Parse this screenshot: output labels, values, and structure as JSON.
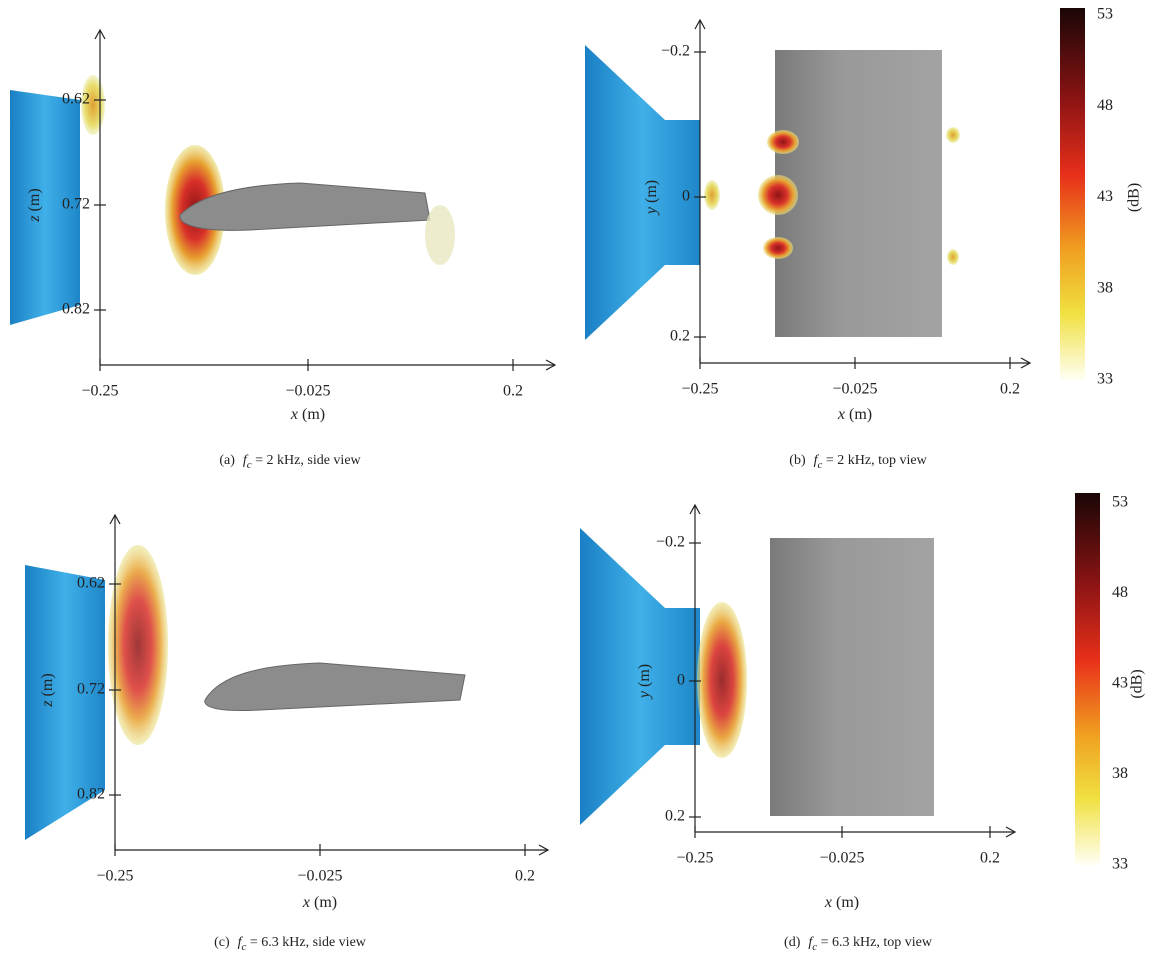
{
  "panels": [
    {
      "caption": {
        "label": "(a)",
        "symbol": "f",
        "subscript": "c",
        "text": " = 2 kHz, side view"
      },
      "xlabel": {
        "var": "x",
        "unit": " (m)"
      },
      "ylabel": {
        "var": "z",
        "unit": " (m)"
      },
      "xticks": [
        "−0.25",
        "−0.025",
        "0.2"
      ],
      "yticks": [
        "0.62",
        "0.72",
        "0.82"
      ]
    },
    {
      "caption": {
        "label": "(b)",
        "symbol": "f",
        "subscript": "c",
        "text": " = 2 kHz, top view"
      },
      "xlabel": {
        "var": "x",
        "unit": " (m)"
      },
      "ylabel": {
        "var": "y",
        "unit": " (m)"
      },
      "xticks": [
        "−0.25",
        "−0.025",
        "0.2"
      ],
      "yticks": [
        "−0.2",
        "0",
        "0.2"
      ]
    },
    {
      "caption": {
        "label": "(c)",
        "symbol": "f",
        "subscript": "c",
        "text": " = 6.3 kHz, side view"
      },
      "xlabel": {
        "var": "x",
        "unit": " (m)"
      },
      "ylabel": {
        "var": "z",
        "unit": " (m)"
      },
      "xticks": [
        "−0.25",
        "−0.025",
        "0.2"
      ],
      "yticks": [
        "0.62",
        "0.72",
        "0.82"
      ]
    },
    {
      "caption": {
        "label": "(d)",
        "symbol": "f",
        "subscript": "c",
        "text": " = 6.3 kHz, top view"
      },
      "xlabel": {
        "var": "x",
        "unit": " (m)"
      },
      "ylabel": {
        "var": "y",
        "unit": " (m)"
      },
      "xticks": [
        "−0.25",
        "−0.025",
        "0.2"
      ],
      "yticks": [
        "−0.2",
        "0",
        "0.2"
      ]
    }
  ],
  "colorbars": [
    {
      "label": "(dB)",
      "ticks": [
        "53",
        "48",
        "43",
        "38",
        "33"
      ]
    },
    {
      "label": "(dB)",
      "ticks": [
        "53",
        "48",
        "43",
        "38",
        "33"
      ]
    }
  ]
}
